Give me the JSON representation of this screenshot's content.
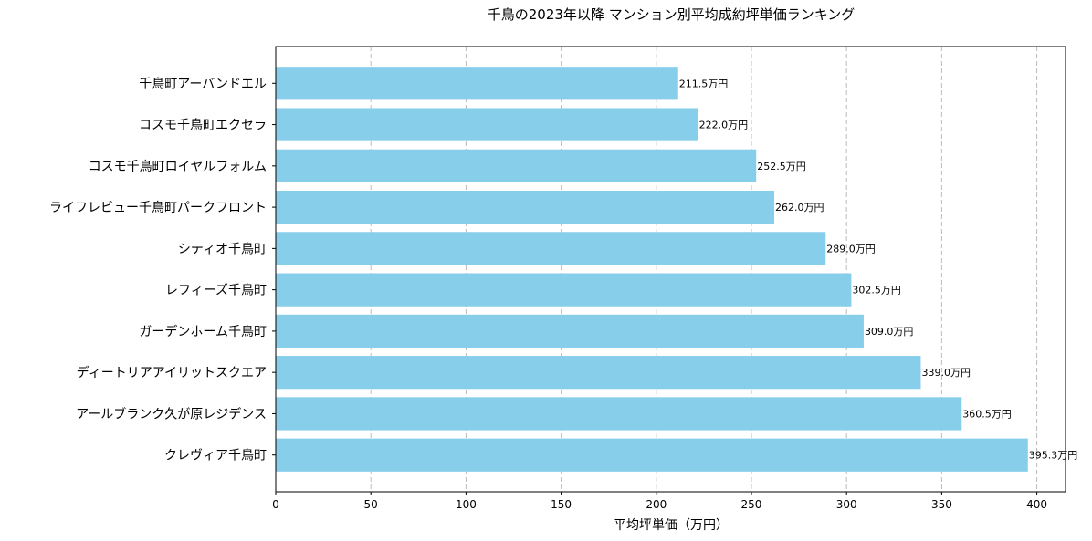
{
  "chart_data": {
    "type": "bar",
    "orientation": "horizontal",
    "title": "千鳥の2023年以降 マンション別平均成約坪単価ランキング",
    "xlabel": "平均坪単価（万円）",
    "ylabel": "",
    "categories": [
      "千鳥町アーバンドエル",
      "コスモ千鳥町エクセラ",
      "コスモ千鳥町ロイヤルフォルム",
      "ライフレビュー千鳥町パークフロント",
      "シティオ千鳥町",
      "レフィーズ千鳥町",
      "ガーデンホーム千鳥町",
      "ディートリアアイリットスクエア",
      "アールブランク久が原レジデンス",
      "クレヴィア千鳥町"
    ],
    "values": [
      211.5,
      222.0,
      252.5,
      262.0,
      289.0,
      302.5,
      309.0,
      339.0,
      360.5,
      395.3
    ],
    "data_labels": [
      "211.5万円",
      "222.0万円",
      "252.5万円",
      "262.0万円",
      "289.0万円",
      "302.5万円",
      "309.0万円",
      "339.0万円",
      "360.5万円",
      "395.3万円"
    ],
    "xticks": [
      0,
      50,
      100,
      150,
      200,
      250,
      300,
      350,
      400
    ],
    "xtick_labels": [
      "0",
      "50",
      "100",
      "150",
      "200",
      "250",
      "300",
      "350",
      "400"
    ],
    "xlim": [
      0,
      415.07
    ],
    "grid": "x-axis dashed",
    "bar_color": "#87CEEB",
    "grid_color": "#bbbbbb"
  }
}
